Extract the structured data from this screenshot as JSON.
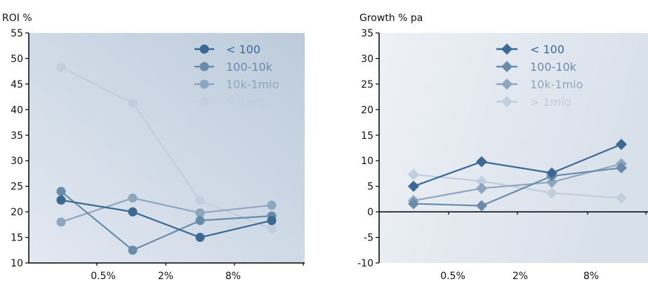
{
  "chart_data": [
    {
      "type": "line",
      "title": "ROI %",
      "categories": [
        "",
        "0.5%",
        "2%",
        "8%"
      ],
      "xlabel": "",
      "ylabel": "ROI %",
      "ylim": [
        10,
        55
      ],
      "yticks": [
        10,
        15,
        20,
        25,
        30,
        35,
        40,
        45,
        50,
        55
      ],
      "marker": "circle",
      "legend": "top-right",
      "series": [
        {
          "name": "< 100",
          "values": [
            22.3,
            20.0,
            15.0,
            18.3
          ],
          "color": "#3a6a93"
        },
        {
          "name": "100-10k",
          "values": [
            24.0,
            12.5,
            18.3,
            19.2
          ],
          "color": "#6a8cab"
        },
        {
          "name": "10k-1mio",
          "values": [
            18.0,
            22.7,
            19.8,
            21.3
          ],
          "color": "#8ea7bf"
        },
        {
          "name": "> 1mio",
          "values": [
            48.3,
            41.3,
            22.2,
            16.7
          ],
          "color": "#c0cedd"
        }
      ]
    },
    {
      "type": "line",
      "title": "Growth % pa",
      "categories": [
        "",
        "0.5%",
        "2%",
        "8%"
      ],
      "xlabel": "",
      "ylabel": "Growth % pa",
      "ylim": [
        -10,
        35
      ],
      "yticks": [
        -10,
        -5,
        0,
        5,
        10,
        15,
        20,
        25,
        30,
        35
      ],
      "marker": "diamond",
      "legend": "top-right",
      "series": [
        {
          "name": "< 100",
          "values": [
            5.0,
            9.8,
            7.6,
            13.2
          ],
          "color": "#3a6a93"
        },
        {
          "name": "100-10k",
          "values": [
            1.6,
            1.2,
            7.0,
            8.6
          ],
          "color": "#6a8cab"
        },
        {
          "name": "10k-1mio",
          "values": [
            2.2,
            4.6,
            5.8,
            9.4
          ],
          "color": "#8ea7bf"
        },
        {
          "name": "> 1mio",
          "values": [
            7.3,
            6.0,
            3.7,
            2.7
          ],
          "color": "#c0cedd"
        }
      ]
    }
  ]
}
